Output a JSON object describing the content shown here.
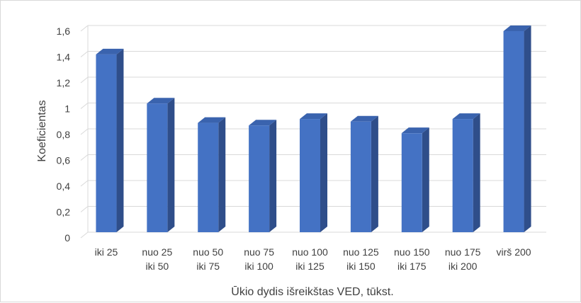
{
  "chart_data": {
    "type": "bar",
    "style": "3d-column",
    "categories": [
      [
        "iki 25"
      ],
      [
        "nuo 25",
        "iki 50"
      ],
      [
        "nuo 50",
        "iki 75"
      ],
      [
        "nuo 75",
        "iki 100"
      ],
      [
        "nuo 100",
        "iki 125"
      ],
      [
        "nuo 125",
        "iki 150"
      ],
      [
        "nuo 150",
        "iki 175"
      ],
      [
        "nuo 175",
        "iki 200"
      ],
      [
        "virš 200"
      ]
    ],
    "values": [
      1.42,
      1.04,
      0.89,
      0.87,
      0.92,
      0.9,
      0.81,
      0.92,
      1.6
    ],
    "xlabel": "Ūkio dydis išreikštas VED, tūkst.",
    "ylabel": "Koeficientas",
    "ylim": [
      0,
      1.6
    ],
    "yticks": [
      "0",
      "0,2",
      "0,4",
      "0,6",
      "0,8",
      "1",
      "1,2",
      "1,4",
      "1,6"
    ],
    "grid": true,
    "colors": {
      "bar_front": "#4472C4",
      "bar_side": "#2F4E8A",
      "bar_top": "#3A63AE",
      "grid": "#d9d9d9",
      "text": "#404040"
    }
  }
}
